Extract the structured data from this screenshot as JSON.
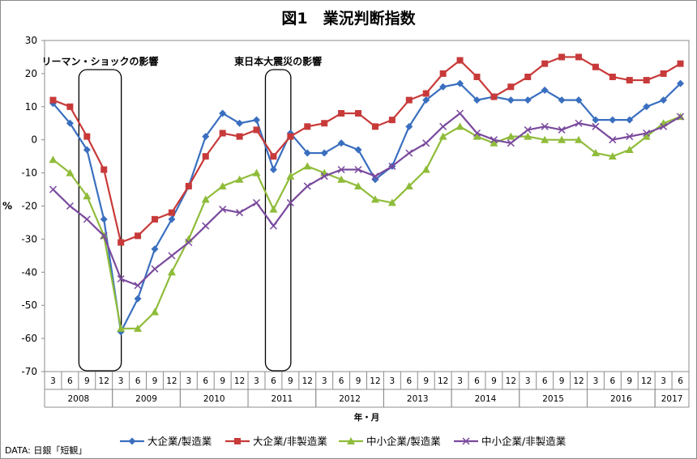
{
  "chart_data": {
    "type": "line",
    "title": "図1　業況判断指数",
    "ylabel": "%",
    "xlabel": "年・月",
    "ylim": [
      -70,
      30
    ],
    "yticks": [
      30,
      20,
      10,
      0,
      -10,
      -20,
      -30,
      -40,
      -50,
      -60,
      -70
    ],
    "grid": false,
    "legend_position": "bottom",
    "month_labels": [
      "3",
      "6",
      "9",
      "12",
      "3",
      "6",
      "9",
      "12",
      "3",
      "6",
      "9",
      "12",
      "3",
      "6",
      "9",
      "12",
      "3",
      "6",
      "9",
      "12",
      "3",
      "6",
      "9",
      "12",
      "3",
      "6",
      "9",
      "12",
      "3",
      "6",
      "9",
      "12",
      "3",
      "6",
      "9",
      "12",
      "3",
      "6"
    ],
    "year_labels": [
      "2008",
      "2009",
      "2010",
      "2011",
      "2012",
      "2013",
      "2014",
      "2015",
      "2016",
      "2017"
    ],
    "annotations": [
      {
        "label": "リーマン・ショックの影響"
      },
      {
        "label": "東日本大震災の影響"
      }
    ],
    "series": [
      {
        "name": "大企業/製造業",
        "color": "#3a6fbf",
        "marker": "diamond",
        "values": [
          11,
          5,
          -3,
          -24,
          -58,
          -48,
          -33,
          -24,
          -14,
          1,
          8,
          5,
          6,
          -9,
          2,
          -4,
          -4,
          -1,
          -3,
          -12,
          -8,
          4,
          12,
          16,
          17,
          12,
          13,
          12,
          12,
          15,
          12,
          12,
          6,
          6,
          6,
          10,
          12,
          17
        ]
      },
      {
        "name": "大企業/非製造業",
        "color": "#c83a3a",
        "marker": "square",
        "values": [
          12,
          10,
          1,
          -9,
          -31,
          -29,
          -24,
          -22,
          -14,
          -5,
          2,
          1,
          3,
          -5,
          1,
          4,
          5,
          8,
          8,
          4,
          6,
          12,
          14,
          20,
          24,
          19,
          13,
          16,
          19,
          23,
          25,
          25,
          22,
          19,
          18,
          18,
          20,
          23
        ]
      },
      {
        "name": "中小企業/製造業",
        "color": "#8fbc3a",
        "marker": "triangle",
        "values": [
          -6,
          -10,
          -17,
          -29,
          -57,
          -57,
          -52,
          -40,
          -30,
          -18,
          -14,
          -12,
          -10,
          -21,
          -11,
          -8,
          -10,
          -12,
          -14,
          -18,
          -19,
          -14,
          -9,
          1,
          4,
          1,
          -1,
          1,
          1,
          0,
          0,
          0,
          -4,
          -5,
          -3,
          1,
          5,
          7
        ]
      },
      {
        "name": "中小企業/非製造業",
        "color": "#7a4a9e",
        "marker": "x",
        "values": [
          -15,
          -20,
          -24,
          -29,
          -42,
          -44,
          -39,
          -35,
          -31,
          -26,
          -21,
          -22,
          -19,
          -26,
          -19,
          -14,
          -11,
          -9,
          -9,
          -11,
          -8,
          -4,
          -1,
          4,
          8,
          2,
          0,
          -1,
          3,
          4,
          3,
          5,
          4,
          0,
          1,
          2,
          4,
          7
        ]
      }
    ]
  },
  "footer": {
    "source": "DATA: 日銀「短観」"
  }
}
